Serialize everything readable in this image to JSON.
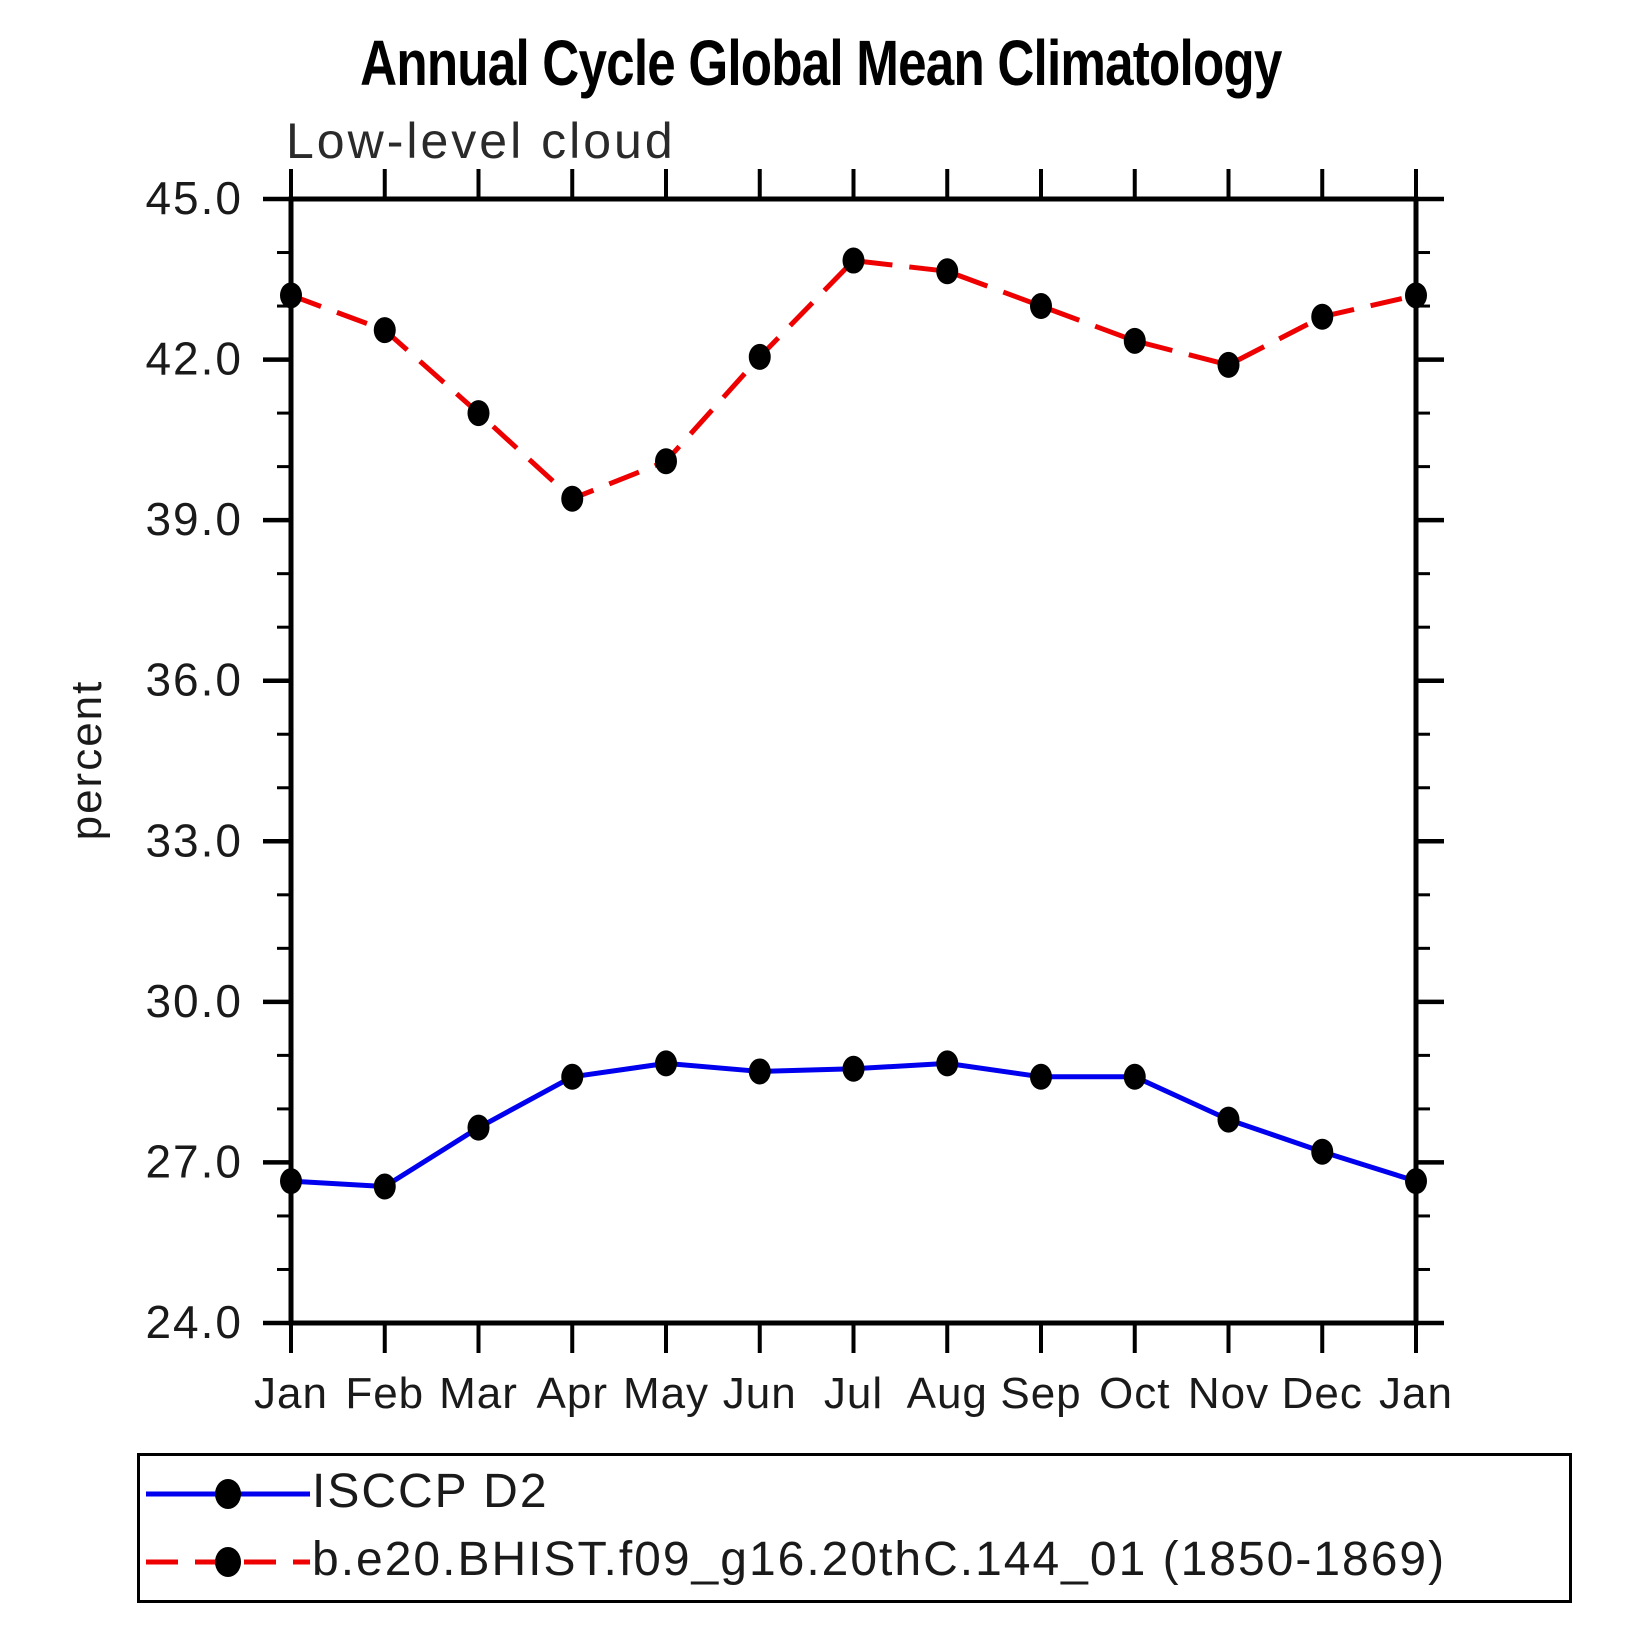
{
  "chart_data": {
    "type": "line",
    "title": "Annual Cycle Global Mean Climatology",
    "subtitle": "Low-level cloud",
    "xlabel": "",
    "ylabel": "percent",
    "ylim": [
      24.0,
      45.0
    ],
    "ytick_major_step": 3.0,
    "ytick_minor_step": 1.0,
    "ytick_label_format": "one-decimal",
    "grid": false,
    "legend_position": "bottom-box",
    "axis_color": "#000000",
    "marker": "filled-black-dot",
    "marker_color": "#000000",
    "categories": [
      "Jan",
      "Feb",
      "Mar",
      "Apr",
      "May",
      "Jun",
      "Jul",
      "Aug",
      "Sep",
      "Oct",
      "Nov",
      "Dec",
      "Jan"
    ],
    "series": [
      {
        "name": "ISCCP D2",
        "color": "#0000ee",
        "line_style": "solid",
        "values": [
          26.65,
          26.55,
          27.65,
          28.6,
          28.85,
          28.7,
          28.75,
          28.85,
          28.6,
          28.6,
          27.8,
          27.2,
          26.65
        ]
      },
      {
        "name": "b.e20.BHIST.f09_g16.20thC.144_01 (1850-1869)",
        "color": "#ee0000",
        "line_style": "dashed",
        "values": [
          43.2,
          42.55,
          41.0,
          39.4,
          40.1,
          42.05,
          43.85,
          43.65,
          43.0,
          42.35,
          41.9,
          42.8,
          43.2
        ]
      }
    ]
  }
}
